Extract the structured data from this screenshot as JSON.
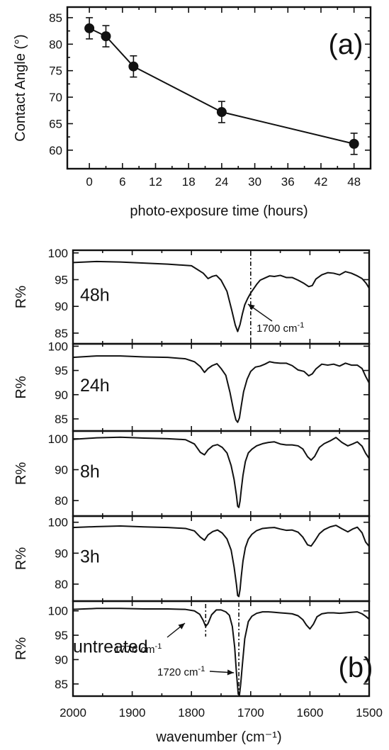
{
  "chart_data": [
    {
      "panel_label": "(a)",
      "type": "line",
      "xlabel": "photo-exposure time (hours)",
      "ylabel": "Contact Angle (°)",
      "xlim": [
        -4,
        51
      ],
      "ylim": [
        56.5,
        87
      ],
      "xticks": [
        "0",
        "6",
        "12",
        "18",
        "24",
        "30",
        "36",
        "42",
        "48"
      ],
      "yticks": [
        "60",
        "65",
        "70",
        "75",
        "80",
        "85"
      ],
      "x": [
        0,
        3,
        8,
        24,
        48
      ],
      "y": [
        83.0,
        81.5,
        75.8,
        67.2,
        61.2
      ],
      "yerr": [
        2.0,
        2.0,
        2.0,
        2.0,
        2.0
      ],
      "marker": "filled-circle"
    },
    {
      "panel_label": "(b)",
      "type": "line",
      "xlabel": "wavenumber (cm⁻¹)",
      "ylabel": "R%",
      "xlim": [
        2000,
        1500
      ],
      "xticks": [
        "2000",
        "1900",
        "1800",
        "1700",
        "1600",
        "1500"
      ],
      "panels": [
        {
          "label": "48h",
          "ylim": [
            83,
            100.5
          ],
          "yticks": [
            "100",
            "95",
            "90",
            "85"
          ],
          "x": [
            2000,
            1960,
            1920,
            1880,
            1840,
            1800,
            1780,
            1772,
            1765,
            1758,
            1750,
            1740,
            1732,
            1726,
            1722,
            1718,
            1714,
            1710,
            1705,
            1700,
            1695,
            1690,
            1684,
            1676,
            1668,
            1660,
            1650,
            1640,
            1630,
            1620,
            1610,
            1602,
            1596,
            1590,
            1580,
            1570,
            1560,
            1550,
            1540,
            1530,
            1520,
            1512,
            1505,
            1500
          ],
          "y": [
            98.2,
            98.4,
            98.3,
            98.1,
            97.9,
            97.6,
            96.2,
            95.2,
            95.6,
            95.8,
            94.9,
            92.8,
            89.3,
            86.5,
            85.3,
            86.6,
            88.6,
            90.3,
            91.5,
            92.5,
            93.3,
            94.1,
            94.9,
            95.3,
            95.7,
            95.6,
            95.8,
            95.4,
            95.4,
            94.9,
            94.3,
            93.7,
            93.9,
            95.1,
            95.9,
            96.3,
            96.2,
            95.9,
            96.5,
            96.2,
            95.7,
            95.2,
            94.3,
            93.4
          ]
        },
        {
          "label": "24h",
          "ylim": [
            82.5,
            100.5
          ],
          "yticks": [
            "100",
            "95",
            "90",
            "85"
          ],
          "x": [
            2000,
            1960,
            1920,
            1880,
            1840,
            1810,
            1795,
            1785,
            1778,
            1772,
            1765,
            1757,
            1750,
            1742,
            1735,
            1729,
            1725,
            1722,
            1719,
            1716,
            1712,
            1706,
            1700,
            1692,
            1684,
            1676,
            1668,
            1660,
            1650,
            1640,
            1630,
            1620,
            1610,
            1602,
            1596,
            1590,
            1580,
            1570,
            1560,
            1550,
            1540,
            1530,
            1520,
            1512,
            1506,
            1500
          ],
          "y": [
            97.7,
            98.0,
            98.0,
            97.8,
            97.7,
            97.4,
            96.8,
            95.8,
            94.6,
            95.4,
            96.0,
            96.4,
            95.4,
            94.0,
            90.5,
            86.8,
            84.8,
            84.3,
            85.2,
            87.6,
            90.6,
            93.2,
            94.8,
            95.7,
            95.9,
            96.3,
            96.8,
            96.6,
            96.5,
            96.5,
            96.0,
            95.1,
            94.8,
            93.9,
            94.3,
            95.3,
            96.3,
            96.1,
            96.3,
            95.9,
            96.5,
            96.1,
            96.1,
            95.4,
            93.8,
            92.4
          ]
        },
        {
          "label": "8h",
          "ylim": [
            75,
            102.5
          ],
          "yticks": [
            "100",
            "90",
            "80"
          ],
          "x": [
            2000,
            1960,
            1920,
            1880,
            1840,
            1810,
            1795,
            1785,
            1778,
            1772,
            1764,
            1756,
            1748,
            1740,
            1733,
            1728,
            1724,
            1722,
            1720,
            1718,
            1716,
            1713,
            1709,
            1704,
            1698,
            1690,
            1680,
            1670,
            1660,
            1650,
            1640,
            1630,
            1620,
            1612,
            1604,
            1598,
            1592,
            1584,
            1576,
            1566,
            1556,
            1546,
            1536,
            1528,
            1520,
            1512,
            1506,
            1500
          ],
          "y": [
            99.8,
            100.3,
            100.5,
            100.2,
            100.0,
            99.7,
            98.3,
            95.6,
            94.8,
            96.4,
            97.7,
            98.1,
            97.2,
            95.4,
            91.3,
            86.8,
            81.6,
            78.2,
            77.8,
            79.8,
            83.4,
            88.2,
            92.6,
            95.4,
            96.6,
            97.7,
            98.4,
            98.8,
            99.0,
            98.3,
            98.0,
            98.0,
            97.7,
            96.7,
            94.2,
            93.1,
            94.3,
            97.2,
            98.4,
            99.3,
            100.4,
            98.8,
            97.7,
            98.3,
            99.0,
            97.6,
            95.3,
            93.6
          ]
        },
        {
          "label": "3h",
          "ylim": [
            74.5,
            102
          ],
          "yticks": [
            "100",
            "90",
            "80"
          ],
          "x": [
            2000,
            1960,
            1920,
            1880,
            1840,
            1810,
            1795,
            1785,
            1778,
            1772,
            1764,
            1756,
            1748,
            1740,
            1733,
            1728,
            1724,
            1722,
            1720,
            1718,
            1716,
            1713,
            1709,
            1704,
            1698,
            1690,
            1680,
            1670,
            1660,
            1650,
            1640,
            1630,
            1620,
            1612,
            1604,
            1598,
            1592,
            1584,
            1576,
            1566,
            1556,
            1546,
            1536,
            1528,
            1520,
            1512,
            1506,
            1500
          ],
          "y": [
            98.3,
            98.6,
            98.8,
            98.5,
            98.3,
            98.0,
            97.2,
            95.2,
            94.2,
            95.9,
            97.0,
            97.5,
            96.5,
            94.6,
            91.0,
            85.5,
            79.8,
            76.3,
            76.0,
            78.2,
            82.3,
            87.5,
            91.8,
            94.5,
            96.1,
            97.3,
            98.0,
            98.2,
            98.3,
            97.8,
            97.4,
            97.5,
            96.8,
            95.2,
            92.7,
            92.3,
            93.9,
            96.3,
            97.6,
            98.5,
            99.0,
            97.9,
            96.9,
            97.8,
            98.4,
            96.6,
            93.6,
            92.2
          ]
        },
        {
          "label": "untreated",
          "ylim": [
            82.5,
            102
          ],
          "yticks": [
            "100",
            "95",
            "90",
            "85"
          ],
          "x": [
            2000,
            1960,
            1920,
            1880,
            1840,
            1810,
            1795,
            1786,
            1780,
            1776,
            1772,
            1766,
            1758,
            1750,
            1742,
            1736,
            1731,
            1727,
            1724,
            1721,
            1719,
            1717,
            1714,
            1710,
            1704,
            1698,
            1690,
            1680,
            1670,
            1660,
            1650,
            1640,
            1630,
            1620,
            1612,
            1606,
            1600,
            1594,
            1588,
            1580,
            1570,
            1560,
            1550,
            1540,
            1530,
            1520,
            1512,
            1506,
            1500
          ],
          "y": [
            100.3,
            100.5,
            100.5,
            100.4,
            100.4,
            100.3,
            100.0,
            99.3,
            98.0,
            96.8,
            97.4,
            99.2,
            100.2,
            100.2,
            99.8,
            99.1,
            96.8,
            92.5,
            87.2,
            82.9,
            82.7,
            84.8,
            89.0,
            94.3,
            97.8,
            98.9,
            99.5,
            99.8,
            99.8,
            99.7,
            99.6,
            99.5,
            99.4,
            99.0,
            98.2,
            97.1,
            96.3,
            97.3,
            98.8,
            99.4,
            99.6,
            99.6,
            99.5,
            99.6,
            99.7,
            99.8,
            99.4,
            98.9,
            98.3
          ]
        }
      ],
      "annotations": [
        {
          "panel": "48h",
          "text": "1700 cm",
          "sup": "-1",
          "x": 1700
        },
        {
          "panel": "untreated",
          "text": "1776 cm",
          "sup": "-1",
          "x": 1776
        },
        {
          "panel": "untreated",
          "text": "1720 cm",
          "sup": "-1",
          "x": 1720
        }
      ]
    }
  ]
}
